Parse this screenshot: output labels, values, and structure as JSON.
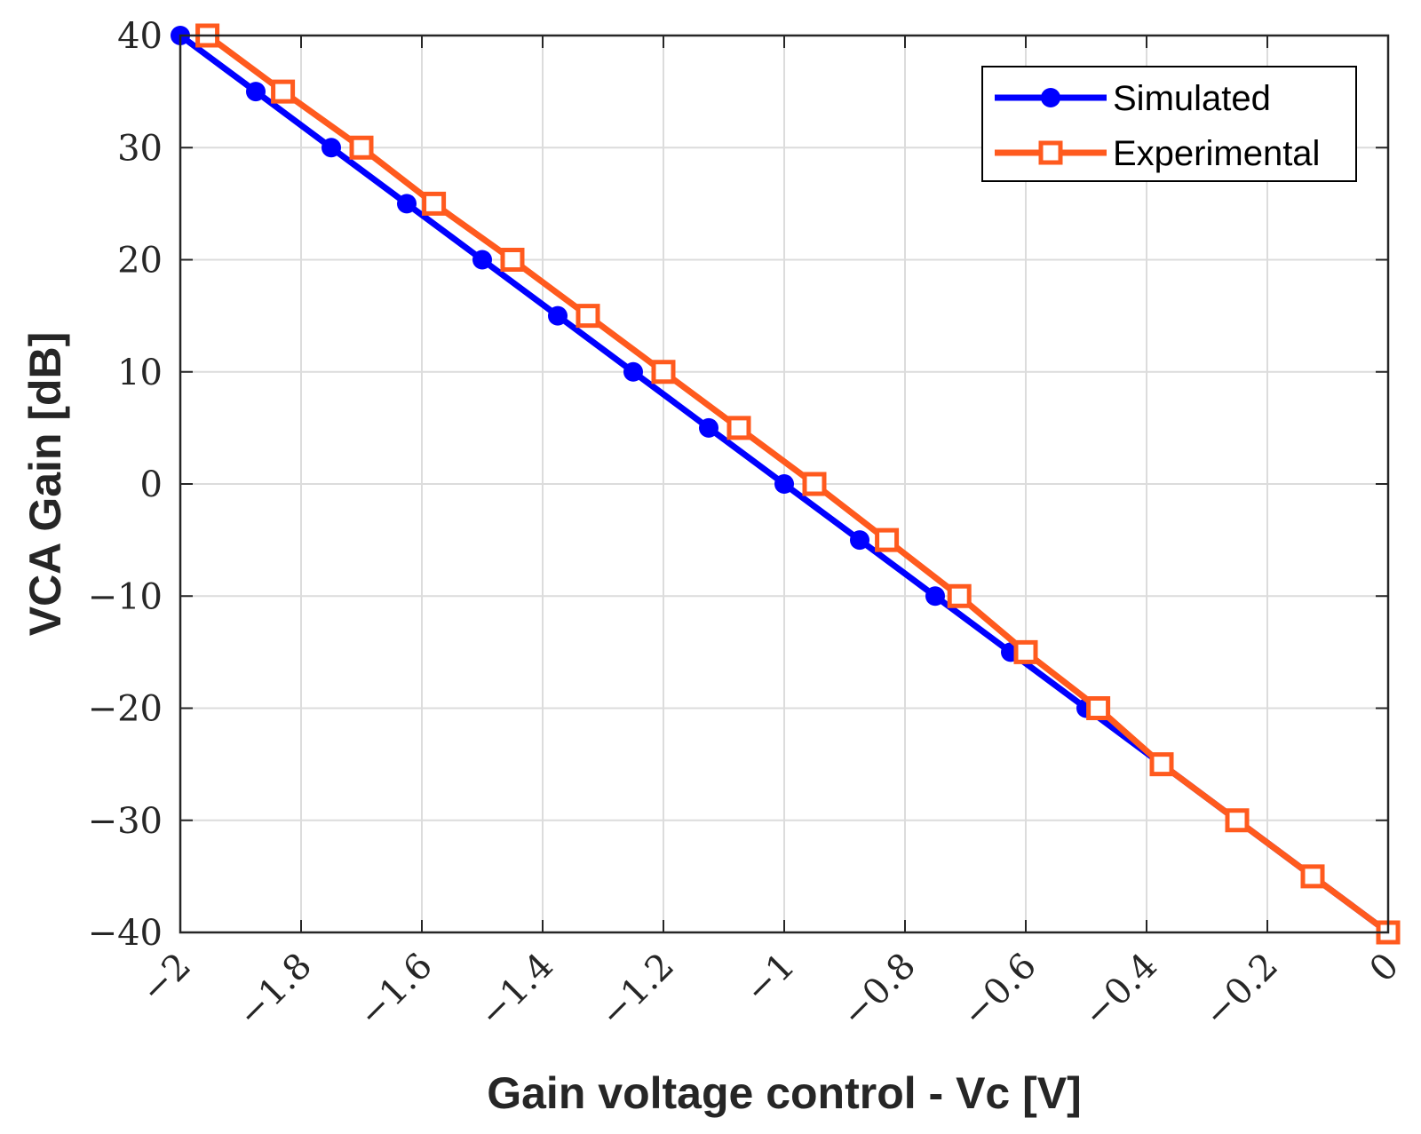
{
  "chart_data": {
    "type": "line",
    "title": "",
    "xlabel": "Gain voltage control - Vc [V]",
    "ylabel": "VCA Gain [dB]",
    "xlim": [
      -2,
      0
    ],
    "ylim": [
      -40,
      40
    ],
    "xticks": [
      -2,
      -1.8,
      -1.6,
      -1.4,
      -1.2,
      -1,
      -0.8,
      -0.6,
      -0.4,
      -0.2,
      0
    ],
    "xtick_labels": [
      "−2",
      "−1.8",
      "−1.6",
      "−1.4",
      "−1.2",
      "−1",
      "−0.8",
      "−0.6",
      "−0.4",
      "−0.2",
      "0"
    ],
    "yticks": [
      40,
      30,
      20,
      10,
      0,
      -10,
      -20,
      -30,
      -40
    ],
    "ytick_labels": [
      "40",
      "30",
      "20",
      "10",
      "0",
      "−10",
      "−20",
      "−30",
      "−40"
    ],
    "grid": true,
    "legend_position": "top-right",
    "series": [
      {
        "name": "Simulated",
        "color": "#0000ff",
        "marker": "circle",
        "x": [
          -2.0,
          -1.875,
          -1.75,
          -1.625,
          -1.5,
          -1.375,
          -1.25,
          -1.125,
          -1.0,
          -0.875,
          -0.75,
          -0.625,
          -0.5,
          -0.375,
          -0.25,
          -0.125,
          0.0
        ],
        "y": [
          40,
          35,
          30,
          25,
          20,
          15,
          10,
          5,
          0,
          -5,
          -10,
          -15,
          -20,
          -25,
          -30,
          -35,
          -40
        ]
      },
      {
        "name": "Experimental",
        "color": "#ff5a1e",
        "marker": "square",
        "x": [
          -1.955,
          -1.83,
          -1.7,
          -1.58,
          -1.45,
          -1.325,
          -1.2,
          -1.075,
          -0.95,
          -0.83,
          -0.71,
          -0.6,
          -0.48,
          -0.375,
          -0.25,
          -0.125,
          0.0
        ],
        "y": [
          40,
          35,
          30,
          25,
          20,
          15,
          10,
          5,
          0,
          -5,
          -10,
          -15,
          -20,
          -25,
          -30,
          -35,
          -40
        ]
      }
    ]
  }
}
